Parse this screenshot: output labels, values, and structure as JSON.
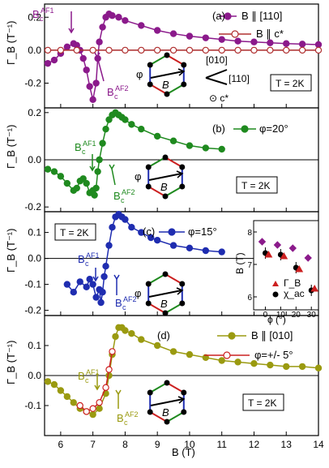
{
  "chart_data": [
    {
      "type": "line",
      "panel_label": "(a)",
      "ylabel": "Γ_B (T⁻¹)",
      "xlim": [
        5.5,
        14
      ],
      "ylim": [
        -0.35,
        0.28
      ],
      "yticks": [
        "0.2",
        "0.0",
        "-0.2"
      ],
      "temperature_box": "T = 2K",
      "annotations": [
        "B_c^AF1",
        "B_c^AF2",
        "φ",
        "[010]",
        "[110]",
        "⊙ c*"
      ],
      "series": [
        {
          "name": "B ∥ [110]",
          "color": "#8b1a8b",
          "marker": "filled",
          "x": [
            5.6,
            5.8,
            6.0,
            6.2,
            6.4,
            6.5,
            6.6,
            6.7,
            6.8,
            6.9,
            7.0,
            7.1,
            7.15,
            7.2,
            7.3,
            7.4,
            7.5,
            7.6,
            7.8,
            8.0,
            8.5,
            9.0,
            9.5,
            10.0,
            10.5,
            11.0,
            11.5,
            12.0,
            12.5,
            13.0,
            13.5,
            14.0
          ],
          "y": [
            -0.08,
            -0.06,
            -0.02,
            0.02,
            0.04,
            0.03,
            0.0,
            -0.05,
            -0.12,
            -0.22,
            -0.3,
            -0.2,
            -0.05,
            0.05,
            0.14,
            0.2,
            0.22,
            0.21,
            0.2,
            0.18,
            0.15,
            0.12,
            0.1,
            0.085,
            0.075,
            0.065,
            0.055,
            0.05,
            0.045,
            0.04,
            0.037,
            0.034
          ]
        },
        {
          "name": "B ∥ c*",
          "color": "#b03030",
          "marker": "open",
          "x": [
            5.6,
            6.0,
            6.5,
            7.0,
            7.5,
            8.0,
            8.5,
            9.0,
            9.5,
            10.0,
            10.5,
            11.0,
            11.5,
            12.0,
            12.5,
            13.0,
            13.5,
            14.0
          ],
          "y": [
            0.0,
            0.0,
            0.0,
            0.0,
            0.0,
            0.0,
            0.0,
            0.0,
            0.0,
            0.0,
            0.0,
            0.0,
            0.0,
            0.0,
            0.0,
            0.0,
            0.0,
            0.0
          ]
        }
      ]
    },
    {
      "type": "line",
      "panel_label": "(b)",
      "ylabel": "Γ_B (T⁻¹)",
      "xlim": [
        5.5,
        14
      ],
      "ylim": [
        -0.22,
        0.22
      ],
      "yticks": [
        "0.2",
        "0.0",
        "-0.2"
      ],
      "temperature_box": "T = 2K",
      "annotations": [
        "B_c^AF1",
        "B_c^AF2",
        "φ"
      ],
      "series": [
        {
          "name": "φ=20°",
          "color": "#1f8a1f",
          "marker": "filled",
          "x": [
            5.6,
            5.8,
            6.0,
            6.2,
            6.4,
            6.5,
            6.6,
            6.7,
            6.8,
            6.9,
            7.0,
            7.05,
            7.1,
            7.15,
            7.2,
            7.3,
            7.4,
            7.5,
            7.6,
            7.7,
            7.8,
            7.9,
            8.0,
            8.2,
            8.5,
            9.0,
            9.5,
            10.0,
            10.5,
            11.0
          ],
          "y": [
            -0.04,
            -0.05,
            -0.07,
            -0.1,
            -0.13,
            -0.12,
            -0.09,
            -0.08,
            -0.1,
            -0.14,
            -0.13,
            -0.15,
            -0.12,
            -0.05,
            0.0,
            0.07,
            0.13,
            0.17,
            0.19,
            0.2,
            0.19,
            0.18,
            0.17,
            0.15,
            0.13,
            0.1,
            0.08,
            0.06,
            0.05,
            0.045
          ]
        }
      ]
    },
    {
      "type": "line",
      "panel_label": "(c)",
      "ylabel": "Γ_B (T⁻¹)",
      "xlim": [
        5.5,
        14
      ],
      "ylim": [
        -0.22,
        0.18
      ],
      "yticks": [
        "0.1",
        "0.0",
        "-0.1",
        "-0.2"
      ],
      "temperature_box": "T = 2K",
      "annotations": [
        "B_c^AF1",
        "B_c^AF2",
        "φ"
      ],
      "series": [
        {
          "name": "φ=15°",
          "color": "#1f2db0",
          "marker": "filled",
          "x": [
            6.2,
            6.4,
            6.6,
            6.8,
            6.9,
            7.0,
            7.1,
            7.2,
            7.25,
            7.3,
            7.35,
            7.4,
            7.5,
            7.6,
            7.7,
            7.8,
            7.9,
            8.0,
            8.2,
            8.5,
            8.8,
            9.0,
            9.5,
            10.0,
            10.5,
            11.0
          ],
          "y": [
            -0.1,
            -0.13,
            -0.09,
            -0.11,
            -0.08,
            -0.1,
            -0.15,
            -0.12,
            -0.17,
            -0.13,
            -0.07,
            -0.03,
            0.05,
            0.12,
            0.16,
            0.17,
            0.16,
            0.15,
            0.12,
            0.1,
            0.08,
            0.07,
            0.05,
            0.04,
            0.03,
            0.025
          ]
        }
      ]
    },
    {
      "type": "scatter",
      "inset": true,
      "xlabel": "ϕ (°)",
      "ylabel": "B (T)",
      "xlim": [
        -5,
        32
      ],
      "ylim": [
        5.8,
        8.2
      ],
      "xticks": [
        "0",
        "10",
        "20",
        "30"
      ],
      "yticks": [
        "6",
        "7",
        "8"
      ],
      "legend": [
        "Γ_B",
        "χ_ac"
      ],
      "series": [
        {
          "name": "B_c^AF1 Γ_B",
          "x": [
            0,
            10,
            20,
            30
          ],
          "y": [
            7.7,
            7.6,
            7.5,
            7.2
          ]
        },
        {
          "name": "B_c^AF2 Γ_B",
          "x": [
            0,
            10,
            20,
            30
          ],
          "y": [
            7.35,
            7.3,
            6.9,
            6.2
          ]
        },
        {
          "name": "χ_ac",
          "x": [
            0,
            10,
            20,
            30
          ],
          "y": [
            7.3,
            7.25,
            6.85,
            6.25
          ]
        }
      ]
    },
    {
      "type": "line",
      "panel_label": "(d)",
      "xlabel": "B (T)",
      "ylabel": "Γ_B (T⁻¹)",
      "xlim": [
        5.5,
        14
      ],
      "ylim": [
        -0.2,
        0.2
      ],
      "xticks": [
        "6",
        "7",
        "8",
        "9",
        "10",
        "11",
        "12",
        "13",
        "14"
      ],
      "yticks": [
        "0.1",
        "0.0",
        "-0.1"
      ],
      "temperature_box": "T = 2K",
      "annotations": [
        "B_c^AF1",
        "B_c^AF2"
      ],
      "series": [
        {
          "name": "B ∥ [010]",
          "color": "#9a9a10",
          "marker": "filled",
          "x": [
            5.6,
            5.8,
            6.0,
            6.2,
            6.4,
            6.6,
            6.8,
            7.0,
            7.2,
            7.4,
            7.5,
            7.6,
            7.7,
            7.8,
            7.9,
            8.0,
            8.2,
            8.5,
            9.0,
            9.5,
            10.0,
            10.5,
            11.0,
            11.5,
            12.0,
            12.5,
            13.0,
            13.5,
            14.0
          ],
          "y": [
            -0.02,
            -0.03,
            -0.05,
            -0.07,
            -0.09,
            -0.11,
            -0.12,
            -0.13,
            -0.11,
            -0.06,
            0.0,
            0.07,
            0.13,
            0.16,
            0.16,
            0.15,
            0.14,
            0.12,
            0.1,
            0.08,
            0.07,
            0.06,
            0.05,
            0.045,
            0.04,
            0.035,
            0.03,
            0.03,
            0.025
          ]
        },
        {
          "name": "φ=+/- 5°",
          "color": "#cc2020",
          "marker": "open",
          "x": [
            6.6,
            6.8,
            7.0,
            7.2,
            7.4,
            7.5,
            7.6
          ],
          "y": [
            -0.1,
            -0.12,
            -0.11,
            -0.09,
            -0.04,
            0.02,
            0.08
          ]
        }
      ]
    }
  ],
  "labels": {
    "xlabel": "B (T)",
    "ylabel": "Γ_B (T⁻¹)",
    "panel_a": "(a)",
    "panel_b": "(b)",
    "panel_c": "(c)",
    "panel_d": "(d)",
    "legend_a1": "B ∥ [110]",
    "legend_a2": "B ∥ c*",
    "legend_b": "φ=20°",
    "legend_c": "φ=15°",
    "legend_d1": "B ∥ [010]",
    "legend_d2": "φ=+/- 5°",
    "temp": "T = 2K",
    "bc_af1": "B",
    "bc_af2": "B",
    "bc_sub": "c",
    "bc_sup1": "AF1",
    "bc_sup2": "AF2",
    "phi": "φ",
    "dir_010": "[010]",
    "dir_110": "[110]",
    "dir_c": "⊙ c*",
    "inset_xlabel": "ϕ (°)",
    "inset_ylabel": "B (T)",
    "inset_leg1": "Γ_B",
    "inset_leg2": "χ_ac",
    "vec_b": "B"
  },
  "colors": {
    "purple": "#8b1a8b",
    "dark_red": "#b03030",
    "green": "#1f8a1f",
    "blue": "#1f2db0",
    "olive": "#9a9a10",
    "red": "#cc2020"
  }
}
